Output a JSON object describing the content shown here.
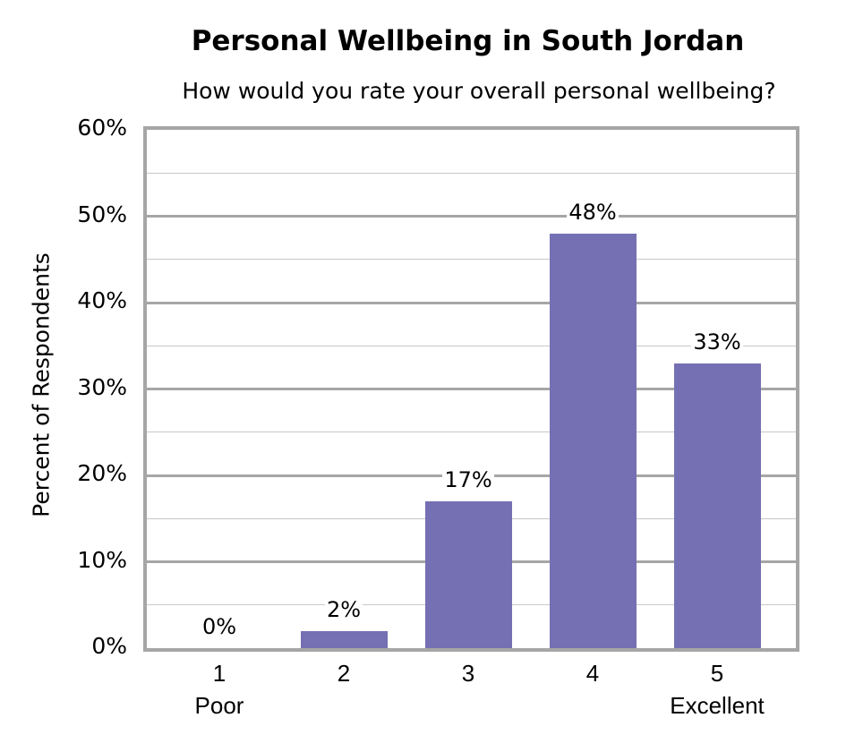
{
  "chart_data": {
    "type": "bar",
    "title": "Personal Wellbeing in South Jordan",
    "subtitle": "How would you rate your overall personal wellbeing?",
    "xlabel": "",
    "ylabel": "Percent of Respondents",
    "categories": [
      "1",
      "2",
      "3",
      "4",
      "5"
    ],
    "category_sublabels": [
      "Poor",
      "",
      "",
      "",
      "Excellent"
    ],
    "values": [
      0,
      2,
      17,
      48,
      33
    ],
    "value_labels": [
      "0%",
      "2%",
      "17%",
      "48%",
      "33%"
    ],
    "ylim": [
      0,
      60
    ],
    "yticks": [
      "0%",
      "10%",
      "20%",
      "30%",
      "40%",
      "50%",
      "60%"
    ],
    "grid": true,
    "minor_grid_step": 5,
    "major_grid_step": 10,
    "legend": null,
    "bar_color": "#7570b3"
  }
}
